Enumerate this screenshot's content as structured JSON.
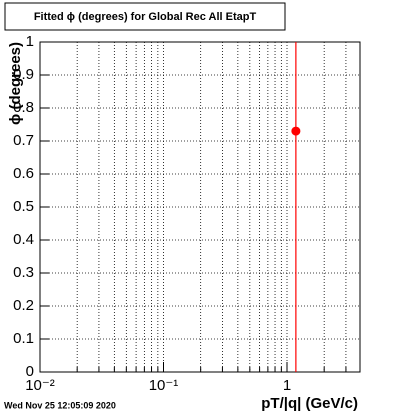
{
  "chart_data": {
    "type": "scatter",
    "title": "Fitted ϕ (degrees) for Global Rec All EtapT",
    "x_label": "pT/|q| (GeV/c)",
    "y_label": "ϕ (degrees)",
    "timestamp": "Wed Nov 25 12:05:09 2020",
    "log_x": true,
    "grid": true,
    "color": "#ff0000",
    "x": [
      1.18
    ],
    "values": [
      0.73
    ],
    "errors": [
      1
    ],
    "xlim": [
      0.01,
      3.9
    ],
    "ylim": [
      0,
      1
    ],
    "xticks": [
      {
        "value": 0.01,
        "label": "10⁻²"
      },
      {
        "value": 0.1,
        "label": "10⁻¹"
      },
      1
    ],
    "xminorticks": [
      0.02,
      0.03,
      0.04,
      0.05,
      0.06,
      0.07,
      0.08,
      0.09,
      0.2,
      0.3,
      0.4,
      0.5,
      0.6,
      0.7,
      0.8,
      0.9,
      2,
      3
    ],
    "yticks": [
      0,
      0.1,
      0.2,
      0.3,
      0.4,
      0.5,
      0.6,
      0.7,
      0.8,
      0.9,
      1
    ]
  }
}
